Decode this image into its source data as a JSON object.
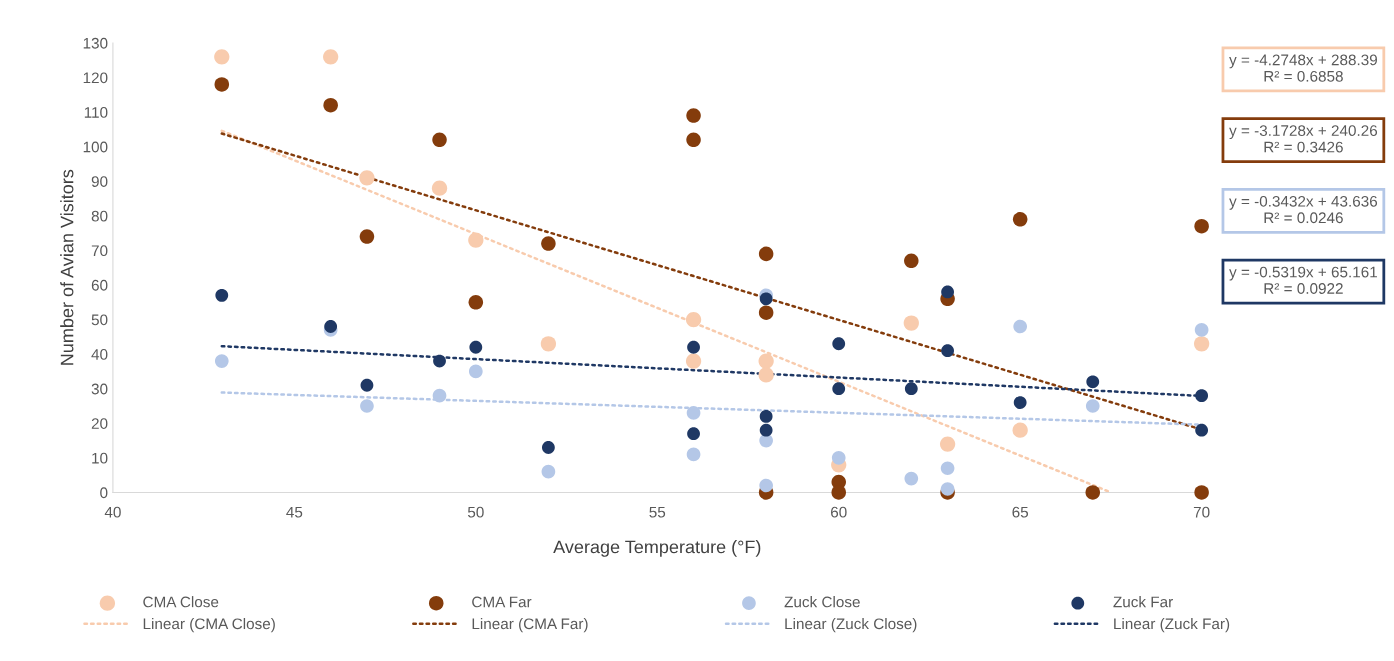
{
  "chart_data": {
    "type": "scatter",
    "xlabel": "Average Temperature (°F)",
    "ylabel": "Number of Avian Visitors",
    "xlim": [
      40,
      70
    ],
    "xticks": [
      40,
      45,
      50,
      55,
      60,
      65,
      70
    ],
    "ylim": [
      0,
      130
    ],
    "yticks": [
      0,
      10,
      20,
      30,
      40,
      50,
      60,
      70,
      80,
      90,
      100,
      110,
      120,
      130
    ],
    "grid": false,
    "legend": "bottom",
    "marker": "circle",
    "series": [
      {
        "name": "CMA Close",
        "color": "#f8cbad",
        "x": [
          43,
          46,
          47,
          49,
          50,
          52,
          56,
          56,
          58,
          58,
          60,
          62,
          63,
          65,
          70
        ],
        "values": [
          126,
          126,
          91,
          88,
          73,
          43,
          50,
          38,
          38,
          34,
          8,
          49,
          14,
          18,
          43
        ]
      },
      {
        "name": "CMA Far",
        "color": "#843c0c",
        "x": [
          43,
          46,
          47,
          49,
          50,
          52,
          56,
          56,
          58,
          58,
          58,
          60,
          60,
          62,
          63,
          63,
          65,
          67,
          70,
          70
        ],
        "values": [
          118,
          112,
          74,
          102,
          55,
          72,
          109,
          102,
          69,
          52,
          0,
          3,
          0,
          67,
          56,
          0,
          79,
          0,
          77,
          0
        ]
      },
      {
        "name": "Zuck Close",
        "color": "#b4c7e7",
        "x": [
          43,
          46,
          47,
          49,
          50,
          52,
          56,
          56,
          58,
          58,
          58,
          60,
          62,
          63,
          63,
          65,
          67,
          70
        ],
        "values": [
          38,
          47,
          25,
          28,
          35,
          6,
          23,
          11,
          57,
          15,
          2,
          10,
          4,
          7,
          1,
          48,
          25,
          47
        ]
      },
      {
        "name": "Zuck Far",
        "color": "#1f3864",
        "x": [
          43,
          46,
          47,
          49,
          50,
          52,
          56,
          56,
          58,
          58,
          58,
          60,
          60,
          62,
          63,
          63,
          65,
          67,
          70,
          70
        ],
        "values": [
          57,
          48,
          31,
          38,
          42,
          13,
          42,
          17,
          56,
          22,
          18,
          43,
          30,
          30,
          58,
          41,
          26,
          32,
          28,
          18
        ]
      },
      {
        "name": "Linear (CMA Close)",
        "type": "line",
        "line_style": "dotted",
        "marker": "none",
        "color": "#f8cbad",
        "x": [
          43,
          67.5
        ],
        "values": [
          104.6,
          0
        ]
      },
      {
        "name": "Linear (CMA Far)",
        "type": "line",
        "line_style": "dotted",
        "marker": "none",
        "color": "#843c0c",
        "x": [
          43,
          70
        ],
        "values": [
          103.8,
          18.2
        ]
      },
      {
        "name": "Linear (Zuck Close)",
        "type": "line",
        "line_style": "dotted",
        "marker": "none",
        "color": "#b4c7e7",
        "x": [
          43,
          70
        ],
        "values": [
          28.9,
          19.6
        ]
      },
      {
        "name": "Linear (Zuck Far)",
        "type": "line",
        "line_style": "dotted",
        "marker": "none",
        "color": "#1f3864",
        "x": [
          43,
          70
        ],
        "values": [
          42.3,
          27.9
        ]
      }
    ],
    "annotations": [
      "y = -4.2748x + 288.39\nR² = 0.6858",
      "y = -3.1728x + 240.26\nR² = 0.3426",
      "y = -0.3432x + 43.636\nR² = 0.0246",
      "y = -0.5319x + 65.161\nR² = 0.0922"
    ]
  }
}
